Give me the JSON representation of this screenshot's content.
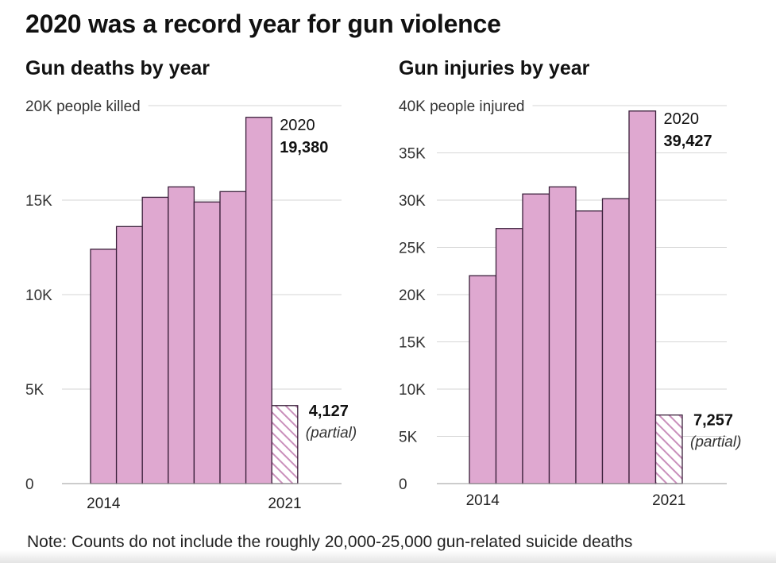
{
  "headline": "2020 was a record year for gun violence",
  "note": "Note: Counts do not include the roughly 20,000-25,000 gun-related suicide deaths",
  "colors": {
    "bar_fill": "#dfa8d0",
    "bar_stroke": "#3a1f3a",
    "hatch_stroke": "#c98fbb",
    "grid": "#d6d6d6"
  },
  "chart_data": [
    {
      "type": "bar",
      "title": "Gun deaths by year",
      "categories": [
        "2014",
        "2015",
        "2016",
        "2017",
        "2018",
        "2019",
        "2020",
        "2021"
      ],
      "values": [
        12400,
        13600,
        15150,
        15700,
        14900,
        15450,
        19380,
        4127
      ],
      "partial": [
        false,
        false,
        false,
        false,
        false,
        false,
        false,
        true
      ],
      "x_tick_labels": [
        "2014",
        "",
        "",
        "",
        "",
        "",
        "",
        "2021"
      ],
      "y_ticks": [
        0,
        5000,
        10000,
        15000,
        20000
      ],
      "y_tick_labels": [
        "0",
        "5K",
        "10K",
        "15K",
        "20K"
      ],
      "y_top_suffix": "people killed",
      "ylim": [
        0,
        20000
      ],
      "grid": true,
      "annotations": [
        {
          "bar_index": 6,
          "year": "2020",
          "value": "19,380"
        },
        {
          "bar_index": 7,
          "value": "4,127",
          "note": "(partial)"
        }
      ]
    },
    {
      "type": "bar",
      "title": "Gun injuries by year",
      "categories": [
        "2014",
        "2015",
        "2016",
        "2017",
        "2018",
        "2019",
        "2020",
        "2021"
      ],
      "values": [
        22000,
        27000,
        30650,
        31400,
        28850,
        30150,
        39427,
        7257
      ],
      "partial": [
        false,
        false,
        false,
        false,
        false,
        false,
        false,
        true
      ],
      "x_tick_labels": [
        "2014",
        "",
        "",
        "",
        "",
        "",
        "",
        "2021"
      ],
      "y_ticks": [
        0,
        5000,
        10000,
        15000,
        20000,
        25000,
        30000,
        35000,
        40000
      ],
      "y_tick_labels": [
        "0",
        "5K",
        "10K",
        "15K",
        "20K",
        "25K",
        "30K",
        "35K",
        "40K"
      ],
      "y_top_suffix": "people injured",
      "ylim": [
        0,
        40000
      ],
      "grid": true,
      "annotations": [
        {
          "bar_index": 6,
          "year": "2020",
          "value": "39,427"
        },
        {
          "bar_index": 7,
          "value": "7,257",
          "note": "(partial)"
        }
      ]
    }
  ]
}
